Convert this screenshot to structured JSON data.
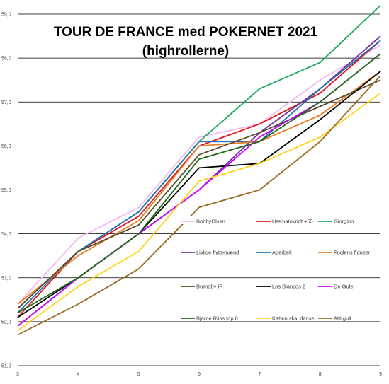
{
  "chart_data": {
    "type": "line",
    "title": "TOUR DE FRANCE med POKERNET 2021",
    "subtitle": "(highrollerne)",
    "x": [
      3,
      4,
      5,
      6,
      7,
      8,
      9
    ],
    "ylim": [
      51.0,
      59.0
    ],
    "yticks": [
      "51,0",
      "52,0",
      "53,0",
      "54,0",
      "55,0",
      "56,0",
      "57,0",
      "58,0",
      "59,0"
    ],
    "xticks": [
      "3",
      "4",
      "5",
      "6",
      "7",
      "8",
      "9"
    ],
    "grid": "horizontal",
    "legend_position": "inside-right",
    "series": [
      {
        "name": "BobbyOlsen",
        "color": "#f6b8f0",
        "values": [
          52.4,
          53.9,
          54.6,
          56.2,
          56.5,
          57.5,
          58.3
        ]
      },
      {
        "name": "Hæmatokridt +55",
        "color": "#e3161b",
        "values": [
          52.1,
          53.6,
          54.4,
          56.0,
          56.5,
          57.2,
          58.4
        ]
      },
      {
        "name": "Giorgino",
        "color": "#1aaa5e",
        "values": [
          52.3,
          53.6,
          54.5,
          56.1,
          57.3,
          57.9,
          59.2
        ]
      },
      {
        "name": "Livlige flyttemænd",
        "color": "#7030a0",
        "values": [
          51.9,
          53.0,
          54.0,
          55.0,
          56.3,
          57.3,
          58.5
        ]
      },
      {
        "name": "Agerbek",
        "color": "#1f6fb4",
        "values": [
          52.2,
          53.6,
          54.5,
          56.1,
          56.1,
          57.3,
          58.4
        ]
      },
      {
        "name": "Fuglens fiduser",
        "color": "#e67e22",
        "values": [
          52.4,
          53.5,
          54.3,
          56.0,
          56.1,
          56.7,
          57.7
        ]
      },
      {
        "name": "Brøndby IF",
        "color": "#5a4a2e",
        "values": [
          52.3,
          53.6,
          54.2,
          55.8,
          56.3,
          56.9,
          57.5
        ]
      },
      {
        "name": "Los Blancos 2",
        "color": "#000000",
        "values": [
          52.1,
          53.0,
          54.0,
          55.5,
          55.6,
          56.6,
          57.7
        ]
      },
      {
        "name": "De Gule",
        "color": "#cc00ff",
        "values": [
          51.9,
          53.0,
          54.0,
          55.0,
          56.2,
          57.0,
          58.1
        ]
      },
      {
        "name": "Bjarne Riiss top 8",
        "color": "#1e6b16",
        "values": [
          52.2,
          53.0,
          54.0,
          55.7,
          56.1,
          57.0,
          58.1
        ]
      },
      {
        "name": "Katten skal danse",
        "color": "#ffd320",
        "values": [
          51.8,
          52.8,
          53.6,
          55.2,
          55.6,
          56.2,
          57.2
        ]
      },
      {
        "name": "Atti gult",
        "color": "#9b6a1f",
        "values": [
          51.7,
          52.4,
          53.2,
          54.6,
          55.0,
          56.1,
          57.6
        ]
      }
    ]
  }
}
